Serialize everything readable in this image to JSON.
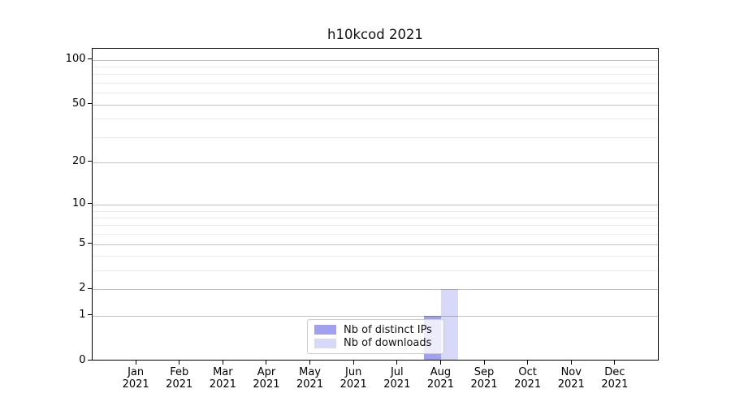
{
  "chart_data": {
    "type": "bar",
    "title": "h10kcod 2021",
    "x": {
      "months": [
        "Jan",
        "Feb",
        "Mar",
        "Apr",
        "May",
        "Jun",
        "Jul",
        "Aug",
        "Sep",
        "Oct",
        "Nov",
        "Dec"
      ],
      "year": "2021"
    },
    "series": [
      {
        "name": "Nb of distinct IPs",
        "color": "#a0a0ee",
        "values": [
          0,
          0,
          0,
          0,
          0,
          0,
          0,
          1,
          0,
          0,
          0,
          0
        ]
      },
      {
        "name": "Nb of downloads",
        "color": "#d8d8f8",
        "values": [
          0,
          0,
          0,
          0,
          0,
          0,
          0,
          2,
          0,
          0,
          0,
          0
        ]
      }
    ],
    "y_axis": {
      "scale": "log1p",
      "major_ticks": [
        0,
        1,
        2,
        5,
        10,
        20,
        50,
        100
      ],
      "minor_gridlines": [
        3,
        4,
        6,
        7,
        8,
        9,
        30,
        40,
        60,
        70,
        80,
        90
      ],
      "ylim": [
        0,
        118
      ]
    },
    "grid": "on",
    "legend": {
      "position": "lower center"
    },
    "colors": {
      "bar_distinct_ips": "#a0a0ee",
      "bar_downloads": "#d8d8f8",
      "axis": "#000000",
      "major_grid": "#c4c4c4",
      "minor_grid": "#ebebeb",
      "background": "#ffffff"
    }
  }
}
